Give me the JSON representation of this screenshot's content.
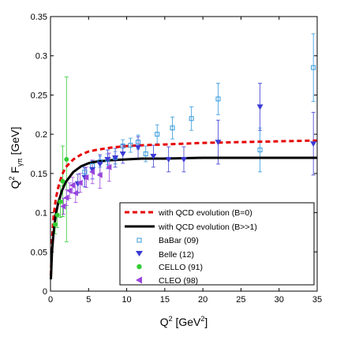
{
  "chart_data": {
    "type": "scatter",
    "xlabel": "Q",
    "xlabel_sup": "2",
    "xlabel_unit": " [GeV",
    "xlabel_unit_sup": "2",
    "xlabel_close": "]",
    "ylabel_q": "Q",
    "ylabel_sup": "2",
    "ylabel_f": " F",
    "ylabel_sub": "γπ",
    "ylabel_unit": " [GeV]",
    "xlim": [
      0,
      35
    ],
    "ylim": [
      0,
      0.35
    ],
    "xticks": [
      0,
      5,
      10,
      15,
      20,
      25,
      30,
      35
    ],
    "yticks": [
      0,
      0.05,
      0.1,
      0.15,
      0.2,
      0.25,
      0.3,
      0.35
    ],
    "xtick_labels": [
      "0",
      "5",
      "10",
      "15",
      "20",
      "25",
      "30",
      "35"
    ],
    "ytick_labels": [
      "0",
      "0.05",
      "0.1",
      "0.15",
      "0.2",
      "0.25",
      "0.3",
      "0.35"
    ],
    "legend_placement": "bottom-right",
    "curves": [
      {
        "name": "with QCD evolution (B=0)",
        "color": "#e60000",
        "style": "dashed",
        "x": [
          0.05,
          0.2,
          0.4,
          0.7,
          1,
          1.5,
          2,
          3,
          4,
          5,
          6,
          8,
          10,
          12,
          15,
          20,
          25,
          30,
          35
        ],
        "y": [
          0.02,
          0.065,
          0.095,
          0.118,
          0.132,
          0.148,
          0.158,
          0.168,
          0.174,
          0.178,
          0.18,
          0.183,
          0.185,
          0.186,
          0.187,
          0.189,
          0.19,
          0.191,
          0.192
        ]
      },
      {
        "name": "with QCD evolution (B>>1)",
        "color": "#000000",
        "style": "solid",
        "x": [
          0.05,
          0.2,
          0.4,
          0.7,
          1,
          1.5,
          2,
          3,
          4,
          5,
          6,
          8,
          10,
          12,
          15,
          20,
          25,
          30,
          35
        ],
        "y": [
          0.015,
          0.05,
          0.075,
          0.098,
          0.112,
          0.128,
          0.139,
          0.152,
          0.159,
          0.163,
          0.165,
          0.167,
          0.168,
          0.169,
          0.169,
          0.17,
          0.17,
          0.17,
          0.17
        ]
      }
    ],
    "series": [
      {
        "name": "BaBar (09)",
        "color": "#3399dd",
        "marker": "square",
        "points": [
          {
            "x": 4.5,
            "y": 0.152,
            "err": 0.006
          },
          {
            "x": 5.5,
            "y": 0.16,
            "err": 0.006
          },
          {
            "x": 6.5,
            "y": 0.165,
            "err": 0.007
          },
          {
            "x": 7.5,
            "y": 0.168,
            "err": 0.007
          },
          {
            "x": 8.5,
            "y": 0.17,
            "err": 0.008
          },
          {
            "x": 9.5,
            "y": 0.185,
            "err": 0.008
          },
          {
            "x": 10.5,
            "y": 0.186,
            "err": 0.009
          },
          {
            "x": 11.5,
            "y": 0.19,
            "err": 0.009
          },
          {
            "x": 12.5,
            "y": 0.175,
            "err": 0.01
          },
          {
            "x": 14.0,
            "y": 0.2,
            "err": 0.012
          },
          {
            "x": 16.0,
            "y": 0.208,
            "err": 0.014
          },
          {
            "x": 18.5,
            "y": 0.22,
            "err": 0.015
          },
          {
            "x": 22.0,
            "y": 0.245,
            "err": 0.02
          },
          {
            "x": 27.5,
            "y": 0.18,
            "err": 0.028
          },
          {
            "x": 34.5,
            "y": 0.285,
            "err": 0.043
          }
        ]
      },
      {
        "name": "Belle (12)",
        "color": "#3b3bd4",
        "marker": "triangle-down",
        "points": [
          {
            "x": 3.6,
            "y": 0.137,
            "err": 0.012
          },
          {
            "x": 4.5,
            "y": 0.145,
            "err": 0.012
          },
          {
            "x": 5.5,
            "y": 0.155,
            "err": 0.012
          },
          {
            "x": 6.5,
            "y": 0.162,
            "err": 0.012
          },
          {
            "x": 7.5,
            "y": 0.168,
            "err": 0.012
          },
          {
            "x": 8.5,
            "y": 0.17,
            "err": 0.012
          },
          {
            "x": 9.5,
            "y": 0.175,
            "err": 0.012
          },
          {
            "x": 11.5,
            "y": 0.183,
            "err": 0.014
          },
          {
            "x": 13.5,
            "y": 0.172,
            "err": 0.014
          },
          {
            "x": 15.5,
            "y": 0.168,
            "err": 0.016
          },
          {
            "x": 17.5,
            "y": 0.168,
            "err": 0.016
          },
          {
            "x": 22.0,
            "y": 0.19,
            "err": 0.028
          },
          {
            "x": 27.5,
            "y": 0.235,
            "err": 0.03
          },
          {
            "x": 34.5,
            "y": 0.188,
            "err": 0.04
          }
        ]
      },
      {
        "name": "CELLO (91)",
        "color": "#33cc33",
        "marker": "circle",
        "points": [
          {
            "x": 0.6,
            "y": 0.085,
            "err": 0.012
          },
          {
            "x": 0.9,
            "y": 0.097,
            "err": 0.016
          },
          {
            "x": 1.3,
            "y": 0.114,
            "err": 0.02
          },
          {
            "x": 1.6,
            "y": 0.14,
            "err": 0.045
          },
          {
            "x": 2.1,
            "y": 0.168,
            "err": 0.105
          }
        ]
      },
      {
        "name": "CLEO (98)",
        "color": "#9944dd",
        "marker": "triangle-left",
        "points": [
          {
            "x": 1.7,
            "y": 0.108,
            "err": 0.01
          },
          {
            "x": 2.1,
            "y": 0.119,
            "err": 0.01
          },
          {
            "x": 2.5,
            "y": 0.128,
            "err": 0.01
          },
          {
            "x": 2.9,
            "y": 0.135,
            "err": 0.01
          },
          {
            "x": 3.3,
            "y": 0.125,
            "err": 0.012
          },
          {
            "x": 3.9,
            "y": 0.138,
            "err": 0.012
          },
          {
            "x": 4.7,
            "y": 0.145,
            "err": 0.013
          },
          {
            "x": 5.5,
            "y": 0.152,
            "err": 0.015
          },
          {
            "x": 6.5,
            "y": 0.148,
            "err": 0.017
          },
          {
            "x": 7.7,
            "y": 0.158,
            "err": 0.018
          }
        ]
      }
    ]
  }
}
